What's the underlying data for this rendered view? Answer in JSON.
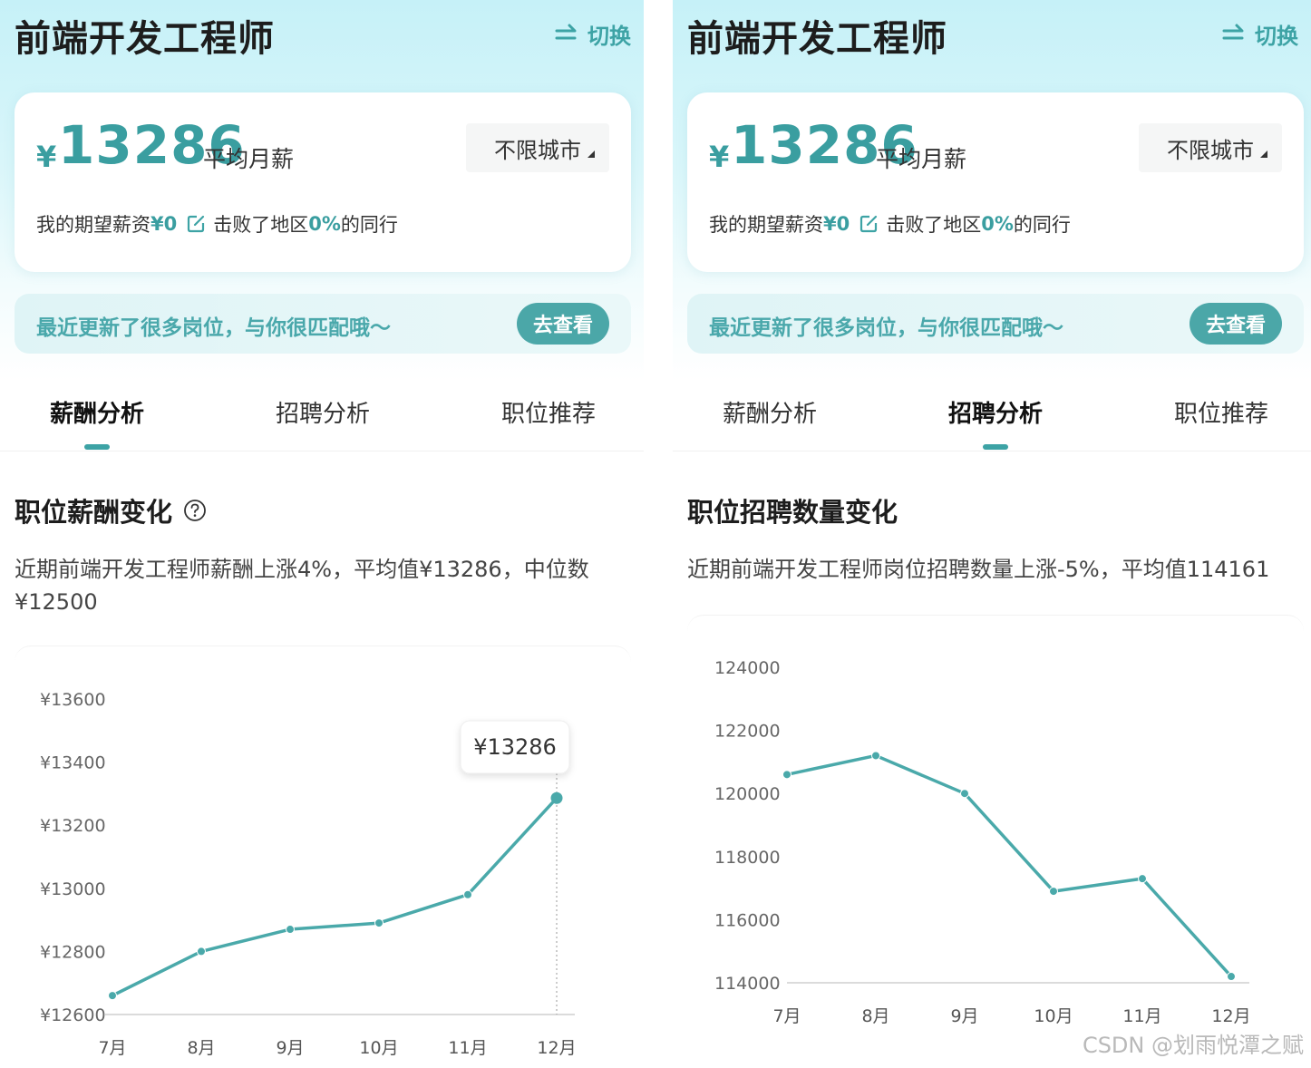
{
  "watermark": "CSDN @划雨悦潭之赋",
  "colors": {
    "accent": "#3da3a5",
    "line": "#4aa9aa"
  },
  "left_screen": {
    "title": "前端开发工程师",
    "switch_label": "切换",
    "salary": {
      "currency_symbol": "¥",
      "amount": "13286",
      "label": "平均月薪",
      "city_select": "不限城市",
      "expect_prefix": "我的期望薪资",
      "expect_value": "¥0",
      "beat_prefix": "击败了地区",
      "beat_percent": "0%",
      "beat_suffix": "的同行"
    },
    "banner": {
      "text": "最近更新了很多岗位，与你很匹配哦～",
      "button": "去查看"
    },
    "tabs": [
      {
        "label": "薪酬分析",
        "active": true
      },
      {
        "label": "招聘分析",
        "active": false
      },
      {
        "label": "职位推荐",
        "active": false
      }
    ],
    "section_title": "职位薪酬变化",
    "section_desc": "近期前端开发工程师薪酬上涨4%，平均值¥13286，中位数¥12500",
    "tooltip": "¥13286",
    "chart_data": {
      "type": "line",
      "categories": [
        "7月",
        "8月",
        "9月",
        "10月",
        "11月",
        "12月"
      ],
      "values": [
        12660,
        12800,
        12870,
        12890,
        12980,
        13286
      ],
      "yticks": [
        "¥12600",
        "¥12800",
        "¥13000",
        "¥13200",
        "¥13400",
        "¥13600"
      ],
      "ylim": [
        12600,
        13600
      ],
      "highlight_index": 5
    }
  },
  "right_screen": {
    "title": "前端开发工程师",
    "switch_label": "切换",
    "salary": {
      "currency_symbol": "¥",
      "amount": "13286",
      "label": "平均月薪",
      "city_select": "不限城市",
      "expect_prefix": "我的期望薪资",
      "expect_value": "¥0",
      "beat_prefix": "击败了地区",
      "beat_percent": "0%",
      "beat_suffix": "的同行"
    },
    "banner": {
      "text": "最近更新了很多岗位，与你很匹配哦～",
      "button": "去查看"
    },
    "tabs": [
      {
        "label": "薪酬分析",
        "active": false
      },
      {
        "label": "招聘分析",
        "active": true
      },
      {
        "label": "职位推荐",
        "active": false
      }
    ],
    "section_title": "职位招聘数量变化",
    "section_desc": "近期前端开发工程师岗位招聘数量上涨-5%，平均值114161",
    "chart_data": {
      "type": "line",
      "categories": [
        "7月",
        "8月",
        "9月",
        "10月",
        "11月",
        "12月"
      ],
      "values": [
        120600,
        121200,
        120000,
        116900,
        117300,
        114200
      ],
      "yticks": [
        "114000",
        "116000",
        "118000",
        "120000",
        "122000",
        "124000"
      ],
      "ylim": [
        114000,
        124000
      ]
    }
  }
}
